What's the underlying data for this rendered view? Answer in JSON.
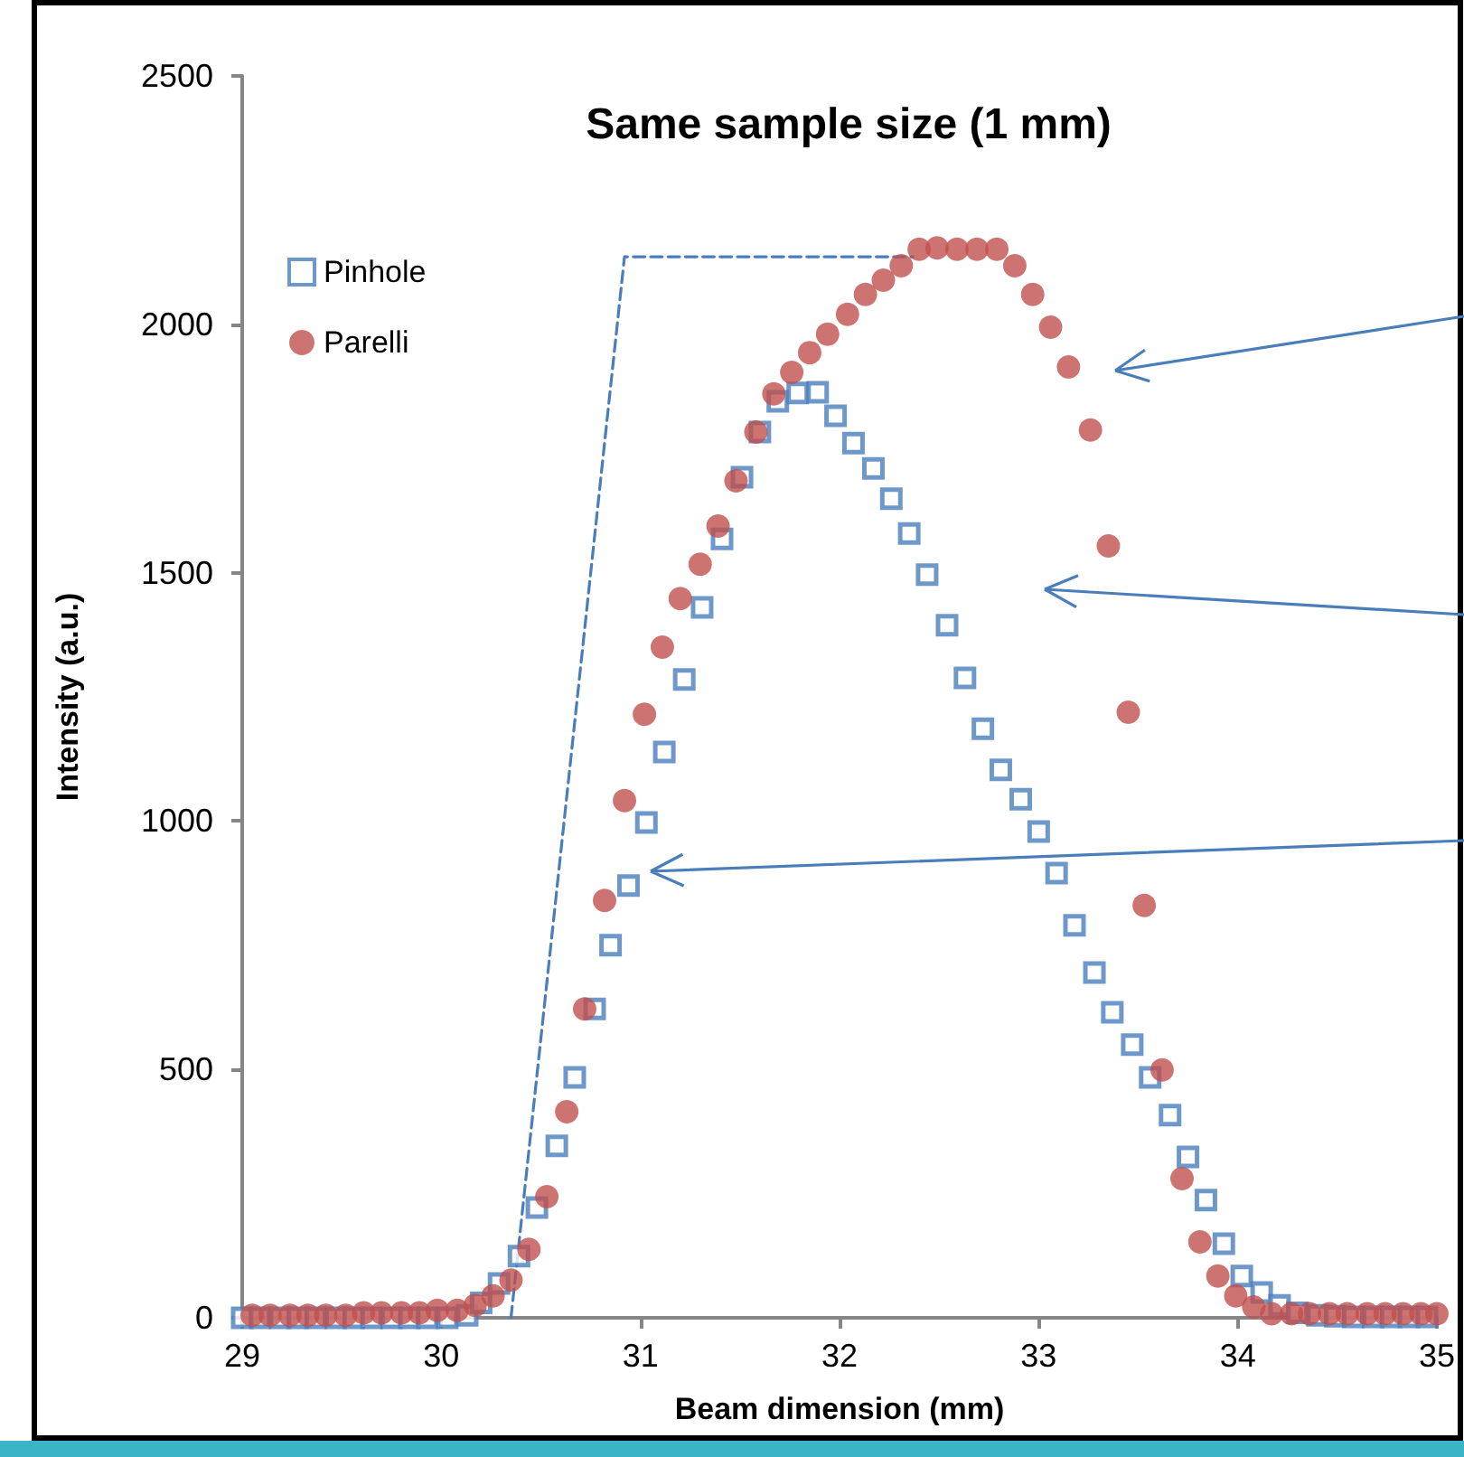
{
  "chart_data": {
    "type": "scatter",
    "title": "Same sample size (1 mm)",
    "xlabel": "Beam dimension (mm)",
    "ylabel": "Intensity (a.u.)",
    "xlim": [
      29,
      35
    ],
    "xticks": [
      29,
      30,
      31,
      32,
      33,
      34,
      35
    ],
    "ylim": [
      0,
      2500
    ],
    "yticks": [
      0,
      500,
      1000,
      1500,
      2000,
      2500
    ],
    "grid": false,
    "legend": "top left",
    "series": [
      {
        "name": "Pinhole",
        "color": "#4a7ebb",
        "marker": "square",
        "x": [
          29.0,
          29.09,
          29.19,
          29.28,
          29.37,
          29.47,
          29.56,
          29.65,
          29.75,
          29.84,
          29.93,
          30.03,
          30.13,
          30.2,
          30.29,
          30.39,
          30.48,
          30.58,
          30.67,
          30.77,
          30.85,
          30.94,
          31.03,
          31.12,
          31.22,
          31.31,
          31.41,
          31.51,
          31.6,
          31.69,
          31.79,
          31.89,
          31.98,
          32.07,
          32.17,
          32.26,
          32.35,
          32.44,
          32.54,
          32.63,
          32.72,
          32.81,
          32.91,
          33.0,
          33.09,
          33.18,
          33.28,
          33.37,
          33.47,
          33.56,
          33.66,
          33.75,
          33.84,
          33.93,
          34.02,
          34.12,
          34.21,
          34.3,
          34.4,
          34.49,
          34.58,
          34.68,
          34.77,
          34.86,
          34.95
        ],
        "values": [
          0,
          0,
          0,
          0,
          0,
          0,
          0,
          0,
          0,
          0,
          0,
          0,
          5,
          30,
          69,
          124,
          222,
          346,
          484,
          622,
          750,
          870,
          997,
          1139,
          1285,
          1430,
          1568,
          1692,
          1783,
          1845,
          1862,
          1863,
          1816,
          1761,
          1710,
          1649,
          1579,
          1496,
          1394,
          1288,
          1186,
          1103,
          1044,
          979,
          895,
          790,
          695,
          615,
          550,
          484,
          408,
          324,
          237,
          149,
          84,
          51,
          25,
          10,
          5,
          3,
          2,
          2,
          2,
          2,
          2
        ]
      },
      {
        "name": "Parelli",
        "color": "#c0504d",
        "marker": "circle",
        "x": [
          29.05,
          29.14,
          29.24,
          29.33,
          29.42,
          29.52,
          29.61,
          29.7,
          29.8,
          29.89,
          29.98,
          30.08,
          30.17,
          30.26,
          30.35,
          30.44,
          30.53,
          30.63,
          30.72,
          30.82,
          30.92,
          31.02,
          31.11,
          31.2,
          31.3,
          31.39,
          31.48,
          31.58,
          31.67,
          31.76,
          31.85,
          31.94,
          32.04,
          32.13,
          32.22,
          32.31,
          32.4,
          32.49,
          32.59,
          32.69,
          32.79,
          32.88,
          32.97,
          33.06,
          33.15,
          33.26,
          33.35,
          33.45,
          33.53,
          33.62,
          33.72,
          33.81,
          33.9,
          33.99,
          34.08,
          34.17,
          34.27,
          34.36,
          34.46,
          34.55,
          34.65,
          34.74,
          34.83,
          34.92,
          35.0
        ],
        "values": [
          5,
          5,
          5,
          5,
          5,
          5,
          10,
          10,
          10,
          10,
          15,
          15,
          25,
          44,
          76,
          138,
          244,
          415,
          622,
          840,
          1041,
          1215,
          1350,
          1448,
          1517,
          1594,
          1685,
          1783,
          1860,
          1903,
          1943,
          1980,
          2020,
          2060,
          2089,
          2118,
          2151,
          2154,
          2151,
          2151,
          2151,
          2118,
          2060,
          1994,
          1914,
          1787,
          1554,
          1219,
          830,
          499,
          280,
          153,
          84,
          44,
          22,
          8,
          8,
          8,
          8,
          8,
          8,
          8,
          8,
          8,
          8
        ]
      },
      {
        "type": "line",
        "color": "#4a7ebb",
        "line_style": "dashed",
        "marker": "none",
        "x": [
          30.35,
          30.92,
          32.37
        ],
        "values": [
          0,
          2136,
          2136
        ]
      }
    ]
  }
}
